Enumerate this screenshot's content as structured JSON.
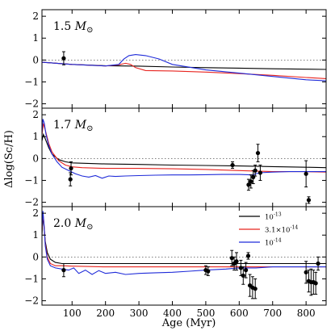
{
  "chart_data": {
    "type": "line",
    "xlabel": "Age (Myr)",
    "ylabel": "Δlog(Sc/H)",
    "xlim": [
      10,
      860
    ],
    "ylim": [
      -2.2,
      2.3
    ],
    "xticks": [
      100,
      200,
      300,
      400,
      500,
      600,
      700,
      800
    ],
    "yticks": [
      -2,
      -1,
      0,
      1,
      2
    ],
    "reference_line": 0,
    "legend": {
      "placement": "center-right of bottom panel",
      "entries": [
        {
          "label": "10^-13",
          "color": "#000000"
        },
        {
          "label": "3.1×10^-14",
          "color": "#e8241f"
        },
        {
          "label": "10^-14",
          "color": "#1f2bd9"
        }
      ]
    },
    "panels": [
      {
        "label": "1.5",
        "label_unit": "M⊙",
        "series": [
          {
            "color": "#000000",
            "x": [
              10,
              100,
              200,
              300,
              400,
              500,
              600,
              700,
              800,
              860
            ],
            "y": [
              -0.1,
              -0.2,
              -0.26,
              -0.28,
              -0.32,
              -0.35,
              -0.37,
              -0.4,
              -0.42,
              -0.43
            ]
          },
          {
            "color": "#e8241f",
            "x": [
              10,
              100,
              200,
              240,
              260,
              275,
              290,
              320,
              400,
              500,
              600,
              700,
              800,
              860
            ],
            "y": [
              -0.1,
              -0.2,
              -0.27,
              -0.22,
              -0.15,
              -0.2,
              -0.35,
              -0.48,
              -0.5,
              -0.55,
              -0.62,
              -0.7,
              -0.8,
              -0.85
            ]
          },
          {
            "color": "#1f2bd9",
            "x": [
              10,
              100,
              200,
              240,
              255,
              270,
              290,
              320,
              360,
              400,
              500,
              600,
              700,
              800,
              860
            ],
            "y": [
              -0.1,
              -0.2,
              -0.27,
              -0.2,
              0.05,
              0.2,
              0.25,
              0.2,
              0.05,
              -0.2,
              -0.45,
              -0.6,
              -0.75,
              -0.9,
              -0.95
            ]
          }
        ],
        "points": [
          {
            "x": 75,
            "y": 0.08,
            "err": 0.3
          }
        ]
      },
      {
        "label": "1.7",
        "label_unit": "M⊙",
        "series": [
          {
            "color": "#000000",
            "x": [
              10,
              14,
              20,
              30,
              40,
              60,
              80,
              100,
              200,
              300,
              400,
              500,
              600,
              700,
              800,
              860
            ],
            "y": [
              0.8,
              1.1,
              0.9,
              0.5,
              0.2,
              -0.05,
              -0.15,
              -0.2,
              -0.25,
              -0.27,
              -0.3,
              -0.32,
              -0.34,
              -0.37,
              -0.4,
              -0.42
            ]
          },
          {
            "color": "#e8241f",
            "x": [
              10,
              14,
              20,
              30,
              40,
              60,
              80,
              100,
              130,
              200,
              300,
              400,
              500,
              600,
              700,
              800,
              860
            ],
            "y": [
              1.1,
              1.6,
              1.3,
              0.7,
              0.3,
              -0.1,
              -0.3,
              -0.38,
              -0.42,
              -0.45,
              -0.45,
              -0.47,
              -0.5,
              -0.55,
              -0.6,
              -0.6,
              -0.62
            ]
          },
          {
            "color": "#1f2bd9",
            "x": [
              10,
              13,
              17,
              22,
              30,
              40,
              55,
              70,
              90,
              110,
              130,
              150,
              170,
              190,
              210,
              230,
              260,
              300,
              350,
              400,
              450,
              500,
              550,
              600,
              640,
              660,
              700,
              750,
              800,
              860
            ],
            "y": [
              1.2,
              1.8,
              1.6,
              1.1,
              0.6,
              0.2,
              -0.15,
              -0.4,
              -0.55,
              -0.7,
              -0.8,
              -0.85,
              -0.78,
              -0.9,
              -0.8,
              -0.82,
              -0.8,
              -0.78,
              -0.76,
              -0.75,
              -0.75,
              -0.74,
              -0.73,
              -0.73,
              -0.75,
              -0.65,
              -0.62,
              -0.6,
              -0.6,
              -0.6
            ]
          }
        ],
        "points": [
          {
            "x": 95,
            "y": -0.95,
            "err": 0.3
          },
          {
            "x": 97,
            "y": -0.45,
            "err": 0.3
          },
          {
            "x": 580,
            "y": -0.3,
            "err": 0.15
          },
          {
            "x": 628,
            "y": -1.2,
            "err": 0.25
          },
          {
            "x": 635,
            "y": -1.05,
            "err": 0.3
          },
          {
            "x": 642,
            "y": -0.85,
            "err": 0.3
          },
          {
            "x": 648,
            "y": -0.55,
            "err": 0.25
          },
          {
            "x": 656,
            "y": 0.25,
            "err": 0.4
          },
          {
            "x": 663,
            "y": -0.65,
            "err": 0.35
          },
          {
            "x": 800,
            "y": -0.7,
            "err": 0.6
          },
          {
            "x": 808,
            "y": -1.9,
            "err": 0.15
          }
        ]
      },
      {
        "label": "2.0",
        "label_unit": "M⊙",
        "series": [
          {
            "color": "#000000",
            "x": [
              10,
              13,
              16,
              20,
              26,
              35,
              50,
              70,
              100,
              200,
              300,
              400,
              500,
              600,
              700,
              800,
              860
            ],
            "y": [
              1.0,
              1.9,
              1.4,
              0.7,
              0.2,
              -0.1,
              -0.25,
              -0.3,
              -0.3,
              -0.3,
              -0.3,
              -0.3,
              -0.3,
              -0.3,
              -0.3,
              -0.3,
              -0.3
            ]
          },
          {
            "color": "#e8241f",
            "x": [
              10,
              13,
              16,
              20,
              26,
              35,
              50,
              70,
              100,
              200,
              300,
              400,
              500,
              600,
              700,
              800,
              860
            ],
            "y": [
              1.2,
              2.0,
              1.5,
              0.6,
              0.0,
              -0.3,
              -0.4,
              -0.4,
              -0.42,
              -0.45,
              -0.45,
              -0.45,
              -0.45,
              -0.45,
              -0.45,
              -0.45,
              -0.45
            ]
          },
          {
            "color": "#1f2bd9",
            "x": [
              10,
              13,
              16,
              20,
              26,
              35,
              50,
              70,
              90,
              105,
              120,
              140,
              160,
              180,
              200,
              230,
              260,
              300,
              350,
              400,
              450,
              500,
              560,
              600,
              650,
              700,
              750,
              800,
              860
            ],
            "y": [
              1.3,
              2.1,
              1.5,
              0.5,
              -0.1,
              -0.4,
              -0.5,
              -0.55,
              -0.6,
              -0.5,
              -0.75,
              -0.6,
              -0.8,
              -0.62,
              -0.75,
              -0.7,
              -0.8,
              -0.75,
              -0.72,
              -0.7,
              -0.65,
              -0.6,
              -0.55,
              -0.5,
              -0.5,
              -0.45,
              -0.45,
              -0.45,
              -0.45
            ]
          }
        ],
        "points": [
          {
            "x": 75,
            "y": -0.6,
            "err": 0.3
          },
          {
            "x": 500,
            "y": -0.6,
            "err": 0.2
          },
          {
            "x": 507,
            "y": -0.65,
            "err": 0.2
          },
          {
            "x": 578,
            "y": -0.05,
            "err": 0.35
          },
          {
            "x": 585,
            "y": -0.3,
            "err": 0.3
          },
          {
            "x": 592,
            "y": -0.2,
            "err": 0.4
          },
          {
            "x": 605,
            "y": -0.5,
            "err": 0.35
          },
          {
            "x": 612,
            "y": -0.85,
            "err": 0.4
          },
          {
            "x": 620,
            "y": -0.6,
            "err": 0.35
          },
          {
            "x": 627,
            "y": 0.05,
            "err": 0.15
          },
          {
            "x": 632,
            "y": -1.3,
            "err": 0.5
          },
          {
            "x": 640,
            "y": -1.4,
            "err": 0.5
          },
          {
            "x": 648,
            "y": -1.45,
            "err": 0.45
          },
          {
            "x": 800,
            "y": -0.7,
            "err": 0.5
          },
          {
            "x": 808,
            "y": -1.1,
            "err": 0.5
          },
          {
            "x": 815,
            "y": -1.15,
            "err": 0.6
          },
          {
            "x": 822,
            "y": -1.15,
            "err": 0.55
          },
          {
            "x": 829,
            "y": -1.2,
            "err": 0.5
          },
          {
            "x": 836,
            "y": -0.3,
            "err": 0.3
          }
        ]
      }
    ]
  }
}
